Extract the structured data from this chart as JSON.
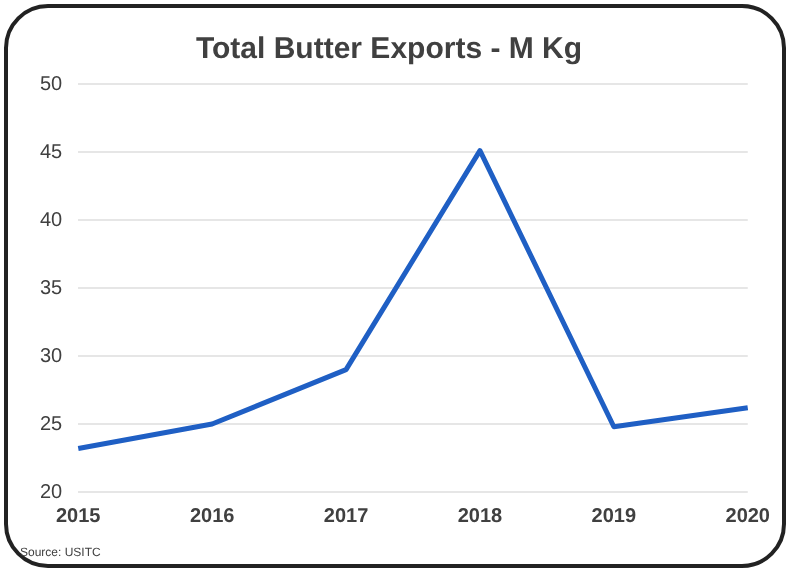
{
  "chart_data": {
    "type": "line",
    "title": "Total Butter Exports - M Kg",
    "categories": [
      "2015",
      "2016",
      "2017",
      "2018",
      "2019",
      "2020"
    ],
    "series": [
      {
        "color": "#1f5fc4",
        "values": [
          23.2,
          25.0,
          29.0,
          45.1,
          24.8,
          26.2
        ]
      }
    ],
    "ylim": [
      20,
      50
    ],
    "yticks": [
      20,
      25,
      30,
      35,
      40,
      45,
      50
    ],
    "grid": "y",
    "legend": false,
    "marker": "none",
    "line_style": "solid",
    "annotations": [
      "Source: USITC"
    ]
  }
}
